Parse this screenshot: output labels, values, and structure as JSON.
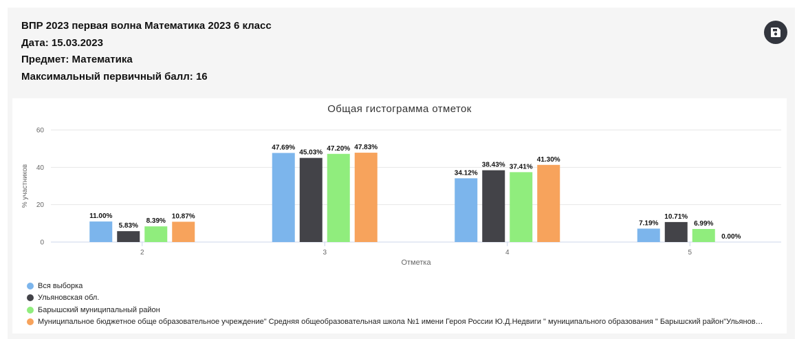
{
  "header": {
    "lines": [
      "ВПР 2023 первая волна Математика 2023 6 класс",
      "Дата: 15.03.2023",
      "Предмет: Математика",
      "Максимальный первичный балл: 16"
    ],
    "save_icon": "save-icon"
  },
  "chart_data": {
    "type": "bar",
    "title": "Общая гистограмма отметок",
    "xlabel": "Отметка",
    "ylabel": "% участников",
    "categories": [
      "2",
      "3",
      "4",
      "5"
    ],
    "ylim": [
      0,
      60
    ],
    "yticks": [
      "0",
      "20",
      "40",
      "60"
    ],
    "grid": true,
    "legend_position": "bottom-left",
    "series": [
      {
        "name": "Вся выборка",
        "color": "#7cb5ec",
        "values": [
          11.0,
          47.69,
          34.12,
          7.19
        ],
        "labels": [
          "11.00%",
          "47.69%",
          "34.12%",
          "7.19%"
        ]
      },
      {
        "name": "Ульяновская обл.",
        "color": "#434348",
        "values": [
          5.83,
          45.03,
          38.43,
          10.71
        ],
        "labels": [
          "5.83%",
          "45.03%",
          "38.43%",
          "10.71%"
        ]
      },
      {
        "name": "Барышский муниципальный район",
        "color": "#90ed7d",
        "values": [
          8.39,
          47.2,
          37.41,
          6.99
        ],
        "labels": [
          "8.39%",
          "47.20%",
          "37.41%",
          "6.99%"
        ]
      },
      {
        "name": "Муниципальное бюджетное обще образовательное учреждение\" Средняя общеобразовательная школа №1 имени Героя России Ю.Д.Недвиги \" муниципального образования \" Барышский район\"Ульянов…",
        "color": "#f7a35c",
        "values": [
          10.87,
          47.83,
          41.3,
          0.0
        ],
        "labels": [
          "10.87%",
          "47.83%",
          "41.30%",
          "0.00%"
        ]
      }
    ]
  }
}
